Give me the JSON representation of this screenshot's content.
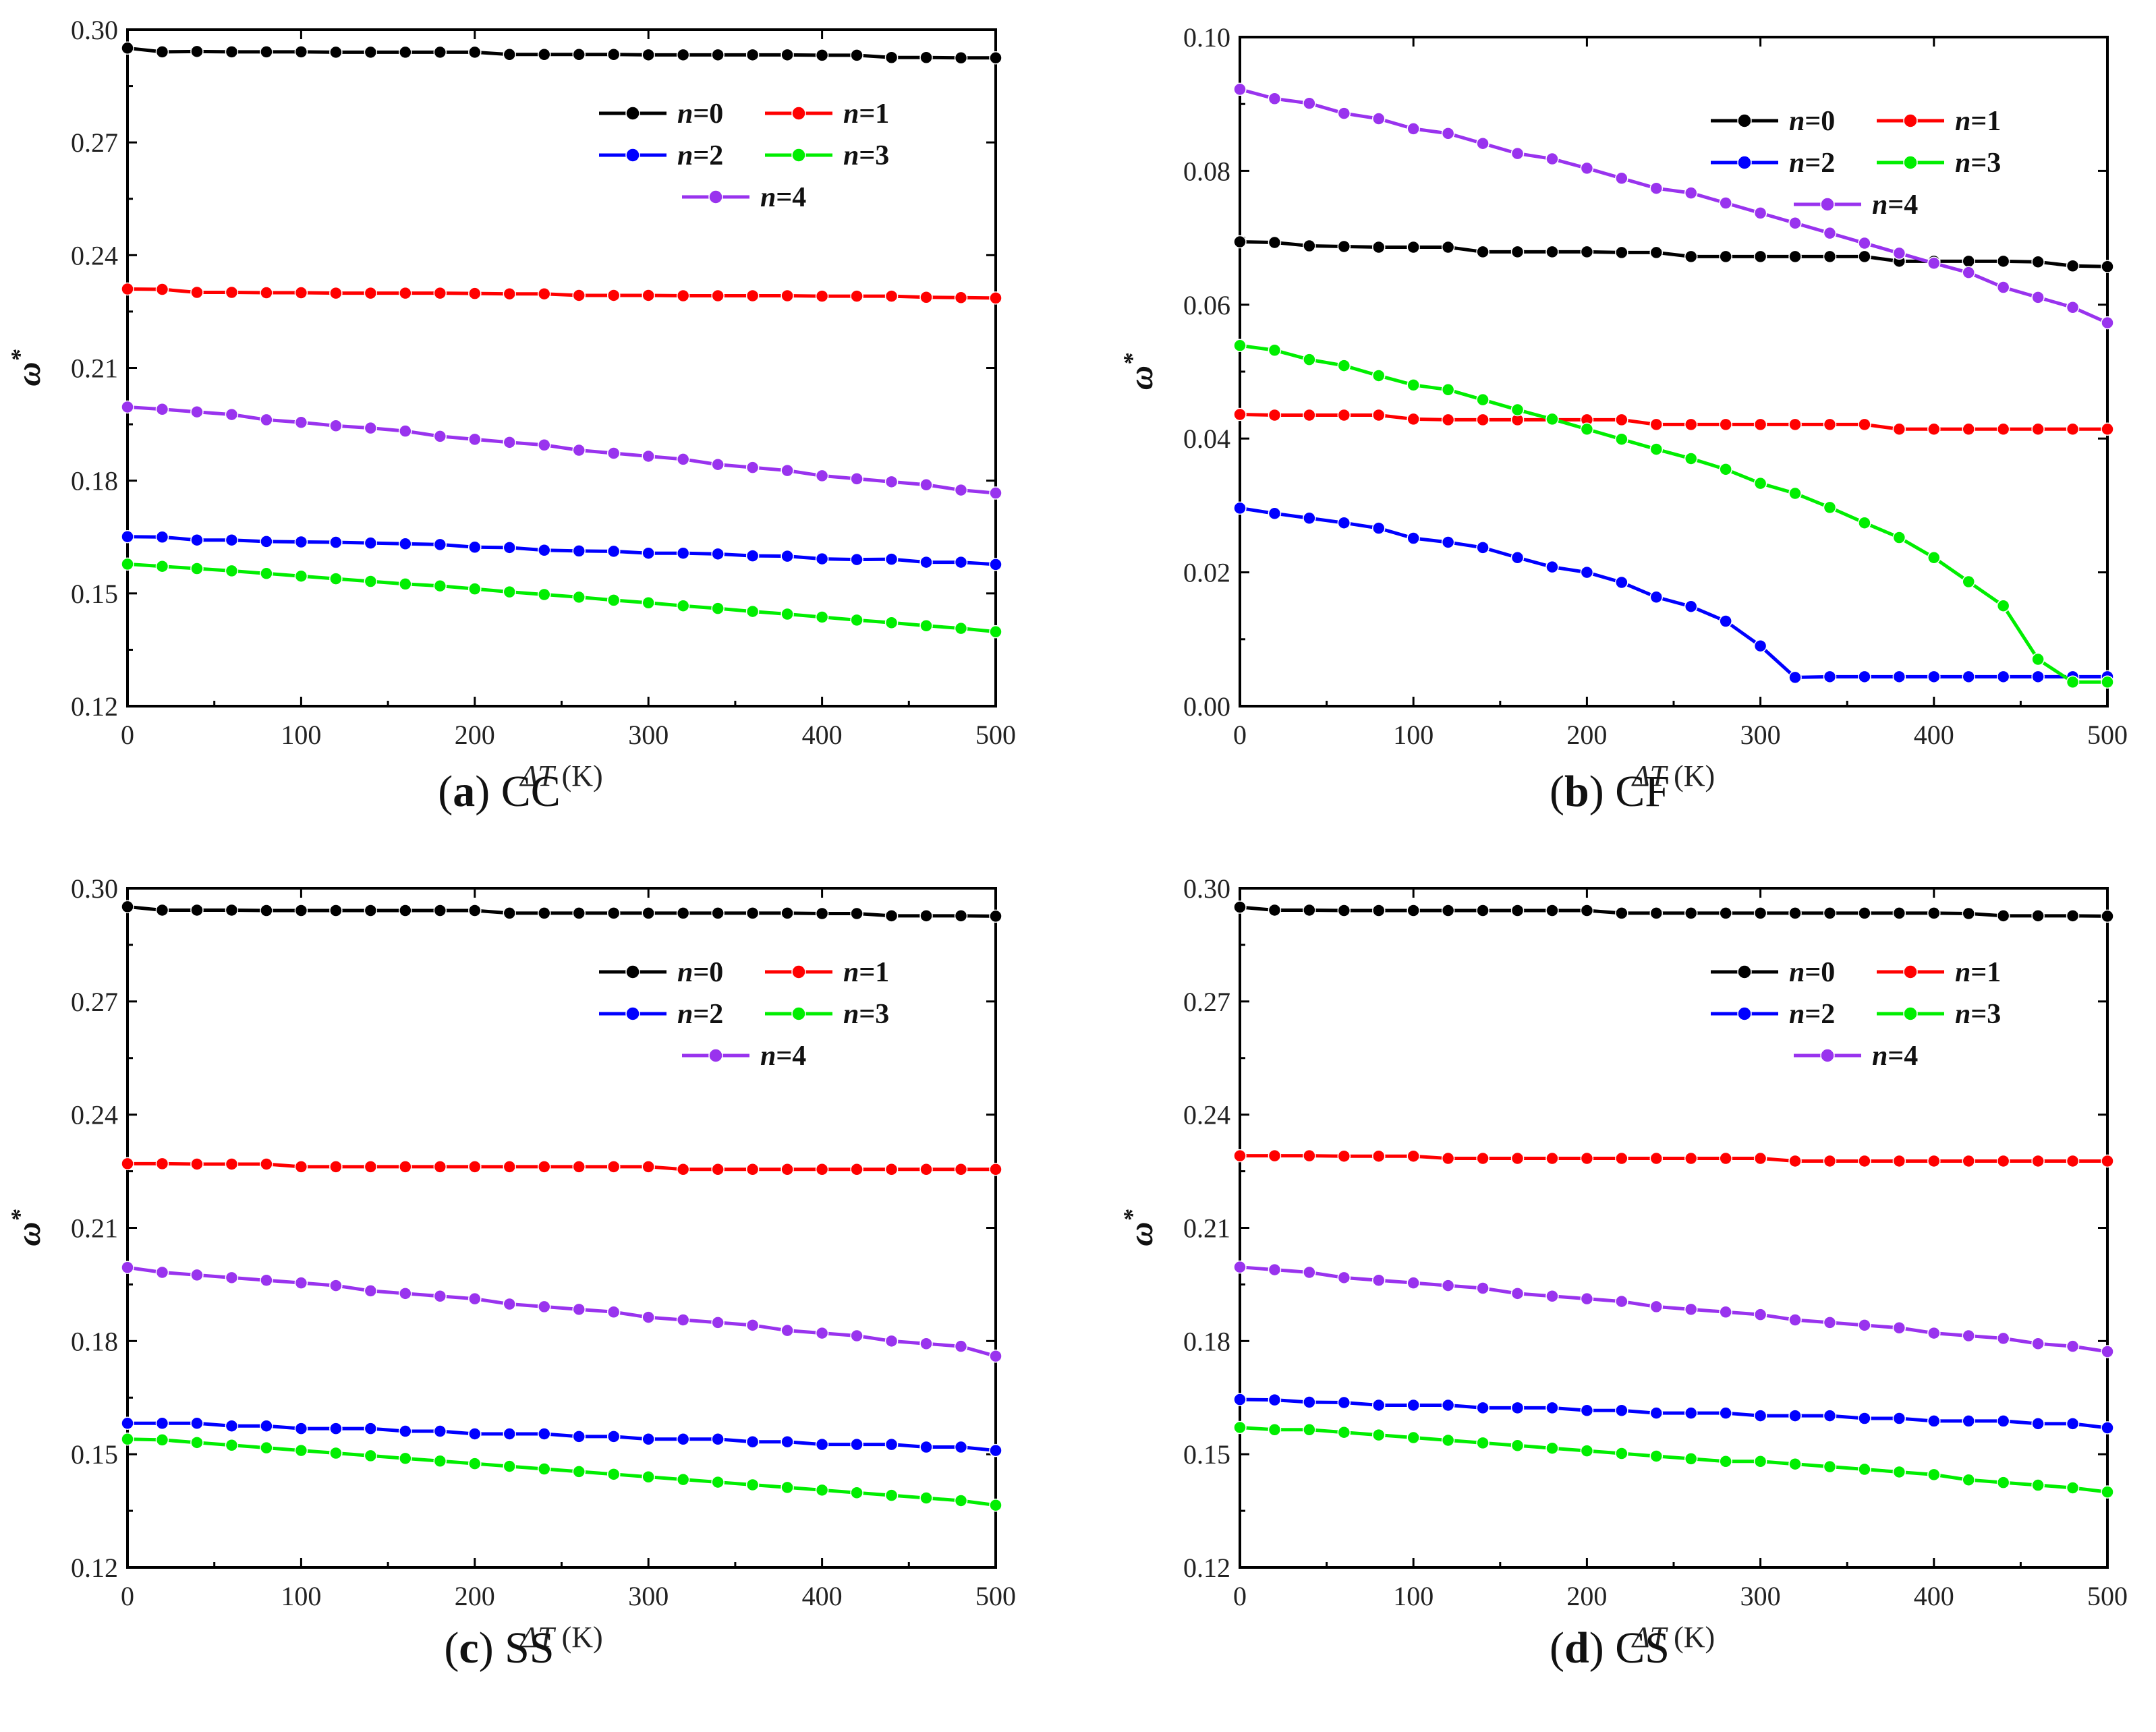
{
  "chart_data": [
    {
      "type": "line",
      "panel": "a",
      "caption_letter": "a",
      "caption_text": "CC",
      "xlabel_symbol": "ΔT",
      "xlabel_unit": "(K)",
      "ylabel": "ω",
      "ylabel_sup": "*",
      "xlim": [
        0,
        500
      ],
      "ylim": [
        0.12,
        0.3
      ],
      "x_ticks": [
        0,
        100,
        200,
        300,
        400,
        500
      ],
      "y_ticks": [
        0.12,
        0.15,
        0.18,
        0.21,
        0.24,
        0.27,
        0.3
      ],
      "y_tick_labels": [
        "0.12",
        "0.15",
        "0.18",
        "0.21",
        "0.24",
        "0.27",
        "0.30"
      ],
      "x": [
        0,
        20,
        40,
        60,
        80,
        100,
        120,
        140,
        160,
        180,
        200,
        220,
        240,
        260,
        280,
        300,
        320,
        340,
        360,
        380,
        400,
        420,
        440,
        460,
        480,
        500
      ],
      "legend_position": "top-right",
      "series": [
        {
          "name": "n=0",
          "var": "n",
          "val": "=0",
          "color": "#000000",
          "values": [
            0.2951,
            0.2941,
            0.2942,
            0.2941,
            0.2941,
            0.2941,
            0.294,
            0.294,
            0.294,
            0.294,
            0.294,
            0.2934,
            0.2934,
            0.2934,
            0.2934,
            0.2933,
            0.2933,
            0.2933,
            0.2933,
            0.2933,
            0.2932,
            0.2932,
            0.2926,
            0.2926,
            0.2925,
            0.2925
          ]
        },
        {
          "name": "n=1",
          "var": "n",
          "val": "=1",
          "color": "#ff0000",
          "values": [
            0.231,
            0.2309,
            0.2301,
            0.2301,
            0.23,
            0.23,
            0.2299,
            0.2299,
            0.2299,
            0.2299,
            0.2298,
            0.2297,
            0.2297,
            0.2293,
            0.2293,
            0.2293,
            0.2292,
            0.2292,
            0.2292,
            0.2292,
            0.2291,
            0.2291,
            0.2291,
            0.2288,
            0.2287,
            0.2286
          ]
        },
        {
          "name": "n=2",
          "var": "n",
          "val": "=2",
          "color": "#0000ff",
          "values": [
            0.1651,
            0.165,
            0.1642,
            0.1642,
            0.1638,
            0.1637,
            0.1636,
            0.1634,
            0.1632,
            0.163,
            0.1623,
            0.1622,
            0.1615,
            0.1613,
            0.1612,
            0.1607,
            0.1607,
            0.1605,
            0.16,
            0.1599,
            0.1592,
            0.159,
            0.1591,
            0.1583,
            0.1583,
            0.1577
          ]
        },
        {
          "name": "n=3",
          "var": "n",
          "val": "=3",
          "color": "#00ee00",
          "values": [
            0.1578,
            0.1572,
            0.1566,
            0.156,
            0.1553,
            0.1546,
            0.1539,
            0.1532,
            0.1525,
            0.152,
            0.1512,
            0.1504,
            0.1497,
            0.149,
            0.1482,
            0.1475,
            0.1467,
            0.146,
            0.1452,
            0.1445,
            0.1437,
            0.1429,
            0.1422,
            0.1414,
            0.1407,
            0.1398
          ]
        },
        {
          "name": "n=4",
          "var": "n",
          "val": "=4",
          "color": "#9933ee",
          "values": [
            0.1996,
            0.199,
            0.1983,
            0.1976,
            0.1962,
            0.1955,
            0.1946,
            0.194,
            0.1932,
            0.1918,
            0.191,
            0.1902,
            0.1895,
            0.1881,
            0.1873,
            0.1865,
            0.1857,
            0.1843,
            0.1835,
            0.1827,
            0.1813,
            0.1805,
            0.1797,
            0.1789,
            0.1775,
            0.1767
          ]
        }
      ]
    },
    {
      "type": "line",
      "panel": "b",
      "caption_letter": "b",
      "caption_text": "CF",
      "xlabel_symbol": "ΔT",
      "xlabel_unit": "(K)",
      "ylabel": "ω",
      "ylabel_sup": "*",
      "xlim": [
        0,
        500
      ],
      "ylim": [
        0.0,
        0.1
      ],
      "x_ticks": [
        0,
        100,
        200,
        300,
        400,
        500
      ],
      "y_ticks": [
        0.0,
        0.02,
        0.04,
        0.06,
        0.08,
        0.1
      ],
      "y_tick_labels": [
        "0.00",
        "0.02",
        "0.04",
        "0.06",
        "0.08",
        "0.10"
      ],
      "x": [
        0,
        20,
        40,
        60,
        80,
        100,
        120,
        140,
        160,
        180,
        200,
        220,
        240,
        260,
        280,
        300,
        320,
        340,
        360,
        380,
        400,
        420,
        440,
        460,
        480,
        500
      ],
      "legend_position": "top-right",
      "series": [
        {
          "name": "n=0",
          "var": "n",
          "val": "=0",
          "color": "#000000",
          "values": [
            0.0694,
            0.0693,
            0.0688,
            0.0687,
            0.0686,
            0.0686,
            0.0686,
            0.0679,
            0.0679,
            0.0679,
            0.0679,
            0.0678,
            0.0678,
            0.0672,
            0.0672,
            0.0672,
            0.0672,
            0.0672,
            0.0672,
            0.0665,
            0.0665,
            0.0665,
            0.0665,
            0.0664,
            0.0658,
            0.0657
          ]
        },
        {
          "name": "n=1",
          "var": "n",
          "val": "=1",
          "color": "#ff0000",
          "values": [
            0.0436,
            0.0435,
            0.0435,
            0.0435,
            0.0435,
            0.0429,
            0.0428,
            0.0428,
            0.0428,
            0.0428,
            0.0428,
            0.0428,
            0.0421,
            0.0421,
            0.0421,
            0.0421,
            0.0421,
            0.0421,
            0.0421,
            0.0414,
            0.0414,
            0.0414,
            0.0414,
            0.0414,
            0.0414,
            0.0414
          ]
        },
        {
          "name": "n=2",
          "var": "n",
          "val": "=2",
          "color": "#0000ff",
          "values": [
            0.0296,
            0.0288,
            0.0281,
            0.0274,
            0.0266,
            0.0251,
            0.0245,
            0.0237,
            0.0222,
            0.0208,
            0.02,
            0.0185,
            0.0163,
            0.0149,
            0.0127,
            0.009,
            0.0043,
            0.0044,
            0.0044,
            0.0044,
            0.0044,
            0.0044,
            0.0044,
            0.0044,
            0.0044,
            0.0044
          ]
        },
        {
          "name": "n=3",
          "var": "n",
          "val": "=3",
          "color": "#00ee00",
          "values": [
            0.0539,
            0.0532,
            0.0518,
            0.0509,
            0.0494,
            0.048,
            0.0473,
            0.0458,
            0.0443,
            0.0429,
            0.0414,
            0.0399,
            0.0384,
            0.037,
            0.0354,
            0.0333,
            0.0318,
            0.0297,
            0.0274,
            0.0252,
            0.0222,
            0.0186,
            0.015,
            0.007,
            0.0036,
            0.0036
          ]
        },
        {
          "name": "n=4",
          "var": "n",
          "val": "=4",
          "color": "#9933ee",
          "values": [
            0.0922,
            0.0908,
            0.0901,
            0.0886,
            0.0878,
            0.0863,
            0.0856,
            0.0841,
            0.0826,
            0.0818,
            0.0804,
            0.0789,
            0.0774,
            0.0767,
            0.0752,
            0.0737,
            0.0722,
            0.0707,
            0.0692,
            0.0677,
            0.0662,
            0.0648,
            0.0626,
            0.0611,
            0.0596,
            0.0573
          ]
        }
      ]
    },
    {
      "type": "line",
      "panel": "c",
      "caption_letter": "c",
      "caption_text": "SS",
      "xlabel_symbol": "ΔT",
      "xlabel_unit": "(K)",
      "ylabel": "ω",
      "ylabel_sup": "*",
      "xlim": [
        0,
        500
      ],
      "ylim": [
        0.12,
        0.3
      ],
      "x_ticks": [
        0,
        100,
        200,
        300,
        400,
        500
      ],
      "y_ticks": [
        0.12,
        0.15,
        0.18,
        0.21,
        0.24,
        0.27,
        0.3
      ],
      "y_tick_labels": [
        "0.12",
        "0.15",
        "0.18",
        "0.21",
        "0.24",
        "0.27",
        "0.30"
      ],
      "x": [
        0,
        20,
        40,
        60,
        80,
        100,
        120,
        140,
        160,
        180,
        200,
        220,
        240,
        260,
        280,
        300,
        320,
        340,
        360,
        380,
        400,
        420,
        440,
        460,
        480,
        500
      ],
      "legend_position": "top-right",
      "series": [
        {
          "name": "n=0",
          "var": "n",
          "val": "=0",
          "color": "#000000",
          "values": [
            0.2951,
            0.2942,
            0.2942,
            0.2942,
            0.2941,
            0.2941,
            0.2941,
            0.2941,
            0.2941,
            0.2941,
            0.2941,
            0.2934,
            0.2934,
            0.2934,
            0.2934,
            0.2934,
            0.2934,
            0.2934,
            0.2934,
            0.2934,
            0.2933,
            0.2933,
            0.2927,
            0.2927,
            0.2927,
            0.2926
          ]
        },
        {
          "name": "n=1",
          "var": "n",
          "val": "=1",
          "color": "#ff0000",
          "values": [
            0.227,
            0.227,
            0.2269,
            0.2269,
            0.2269,
            0.2262,
            0.2262,
            0.2262,
            0.2262,
            0.2262,
            0.2262,
            0.2262,
            0.2262,
            0.2262,
            0.2262,
            0.2262,
            0.2255,
            0.2255,
            0.2255,
            0.2255,
            0.2255,
            0.2255,
            0.2255,
            0.2255,
            0.2255,
            0.2255
          ]
        },
        {
          "name": "n=2",
          "var": "n",
          "val": "=2",
          "color": "#0000ff",
          "values": [
            0.1582,
            0.1582,
            0.1582,
            0.1575,
            0.1575,
            0.1568,
            0.1568,
            0.1568,
            0.1561,
            0.1561,
            0.1554,
            0.1554,
            0.1554,
            0.1547,
            0.1547,
            0.154,
            0.154,
            0.154,
            0.1533,
            0.1533,
            0.1526,
            0.1526,
            0.1526,
            0.1519,
            0.1519,
            0.151
          ]
        },
        {
          "name": "n=3",
          "var": "n",
          "val": "=3",
          "color": "#00ee00",
          "values": [
            0.154,
            0.1538,
            0.1531,
            0.1524,
            0.1517,
            0.151,
            0.1503,
            0.1496,
            0.1489,
            0.1482,
            0.1475,
            0.1468,
            0.1461,
            0.1454,
            0.1447,
            0.144,
            0.1433,
            0.1426,
            0.1419,
            0.1412,
            0.1405,
            0.1398,
            0.1391,
            0.1384,
            0.1377,
            0.1365
          ]
        },
        {
          "name": "n=4",
          "var": "n",
          "val": "=4",
          "color": "#9933ee",
          "values": [
            0.1995,
            0.1982,
            0.1975,
            0.1968,
            0.1961,
            0.1954,
            0.1947,
            0.1933,
            0.1926,
            0.1919,
            0.1912,
            0.1898,
            0.1891,
            0.1884,
            0.1877,
            0.1863,
            0.1856,
            0.1849,
            0.1842,
            0.1828,
            0.1821,
            0.1814,
            0.18,
            0.1793,
            0.1786,
            0.176
          ]
        }
      ]
    },
    {
      "type": "line",
      "panel": "d",
      "caption_letter": "d",
      "caption_text": "CS",
      "xlabel_symbol": "ΔT",
      "xlabel_unit": "(K)",
      "ylabel": "ω",
      "ylabel_sup": "*",
      "xlim": [
        0,
        500
      ],
      "ylim": [
        0.12,
        0.3
      ],
      "x_ticks": [
        0,
        100,
        200,
        300,
        400,
        500
      ],
      "y_ticks": [
        0.12,
        0.15,
        0.18,
        0.21,
        0.24,
        0.27,
        0.3
      ],
      "y_tick_labels": [
        "0.12",
        "0.15",
        "0.18",
        "0.21",
        "0.24",
        "0.27",
        "0.30"
      ],
      "x": [
        0,
        20,
        40,
        60,
        80,
        100,
        120,
        140,
        160,
        180,
        200,
        220,
        240,
        260,
        280,
        300,
        320,
        340,
        360,
        380,
        400,
        420,
        440,
        460,
        480,
        500
      ],
      "legend_position": "top-right",
      "series": [
        {
          "name": "n=0",
          "var": "n",
          "val": "=0",
          "color": "#000000",
          "values": [
            0.295,
            0.2942,
            0.2942,
            0.2941,
            0.2941,
            0.2941,
            0.2941,
            0.2941,
            0.2941,
            0.2941,
            0.2941,
            0.2934,
            0.2934,
            0.2934,
            0.2934,
            0.2934,
            0.2934,
            0.2934,
            0.2934,
            0.2934,
            0.2934,
            0.2933,
            0.2927,
            0.2927,
            0.2927,
            0.2926
          ]
        },
        {
          "name": "n=1",
          "var": "n",
          "val": "=1",
          "color": "#ff0000",
          "values": [
            0.2291,
            0.2291,
            0.2291,
            0.229,
            0.229,
            0.229,
            0.2284,
            0.2284,
            0.2284,
            0.2284,
            0.2284,
            0.2284,
            0.2284,
            0.2284,
            0.2284,
            0.2284,
            0.2277,
            0.2277,
            0.2277,
            0.2277,
            0.2277,
            0.2277,
            0.2277,
            0.2277,
            0.2277,
            0.2277
          ]
        },
        {
          "name": "n=2",
          "var": "n",
          "val": "=2",
          "color": "#0000ff",
          "values": [
            0.1645,
            0.1644,
            0.1638,
            0.1637,
            0.163,
            0.163,
            0.163,
            0.1623,
            0.1623,
            0.1623,
            0.1616,
            0.1616,
            0.1609,
            0.1609,
            0.1609,
            0.1602,
            0.1602,
            0.1602,
            0.1595,
            0.1595,
            0.1588,
            0.1588,
            0.1588,
            0.1581,
            0.1581,
            0.157
          ]
        },
        {
          "name": "n=3",
          "var": "n",
          "val": "=3",
          "color": "#00ee00",
          "values": [
            0.1571,
            0.1565,
            0.1565,
            0.1558,
            0.1551,
            0.1544,
            0.1537,
            0.153,
            0.1523,
            0.1516,
            0.1509,
            0.1502,
            0.1495,
            0.1488,
            0.1481,
            0.1481,
            0.1474,
            0.1467,
            0.146,
            0.1453,
            0.1446,
            0.1432,
            0.1425,
            0.1418,
            0.1411,
            0.14
          ]
        },
        {
          "name": "n=4",
          "var": "n",
          "val": "=4",
          "color": "#9933ee",
          "values": [
            0.1996,
            0.1989,
            0.1982,
            0.1968,
            0.1961,
            0.1954,
            0.1947,
            0.194,
            0.1926,
            0.1919,
            0.1912,
            0.1905,
            0.1891,
            0.1884,
            0.1877,
            0.187,
            0.1856,
            0.1849,
            0.1842,
            0.1835,
            0.1821,
            0.1814,
            0.1807,
            0.1793,
            0.1786,
            0.1772
          ]
        }
      ]
    }
  ]
}
